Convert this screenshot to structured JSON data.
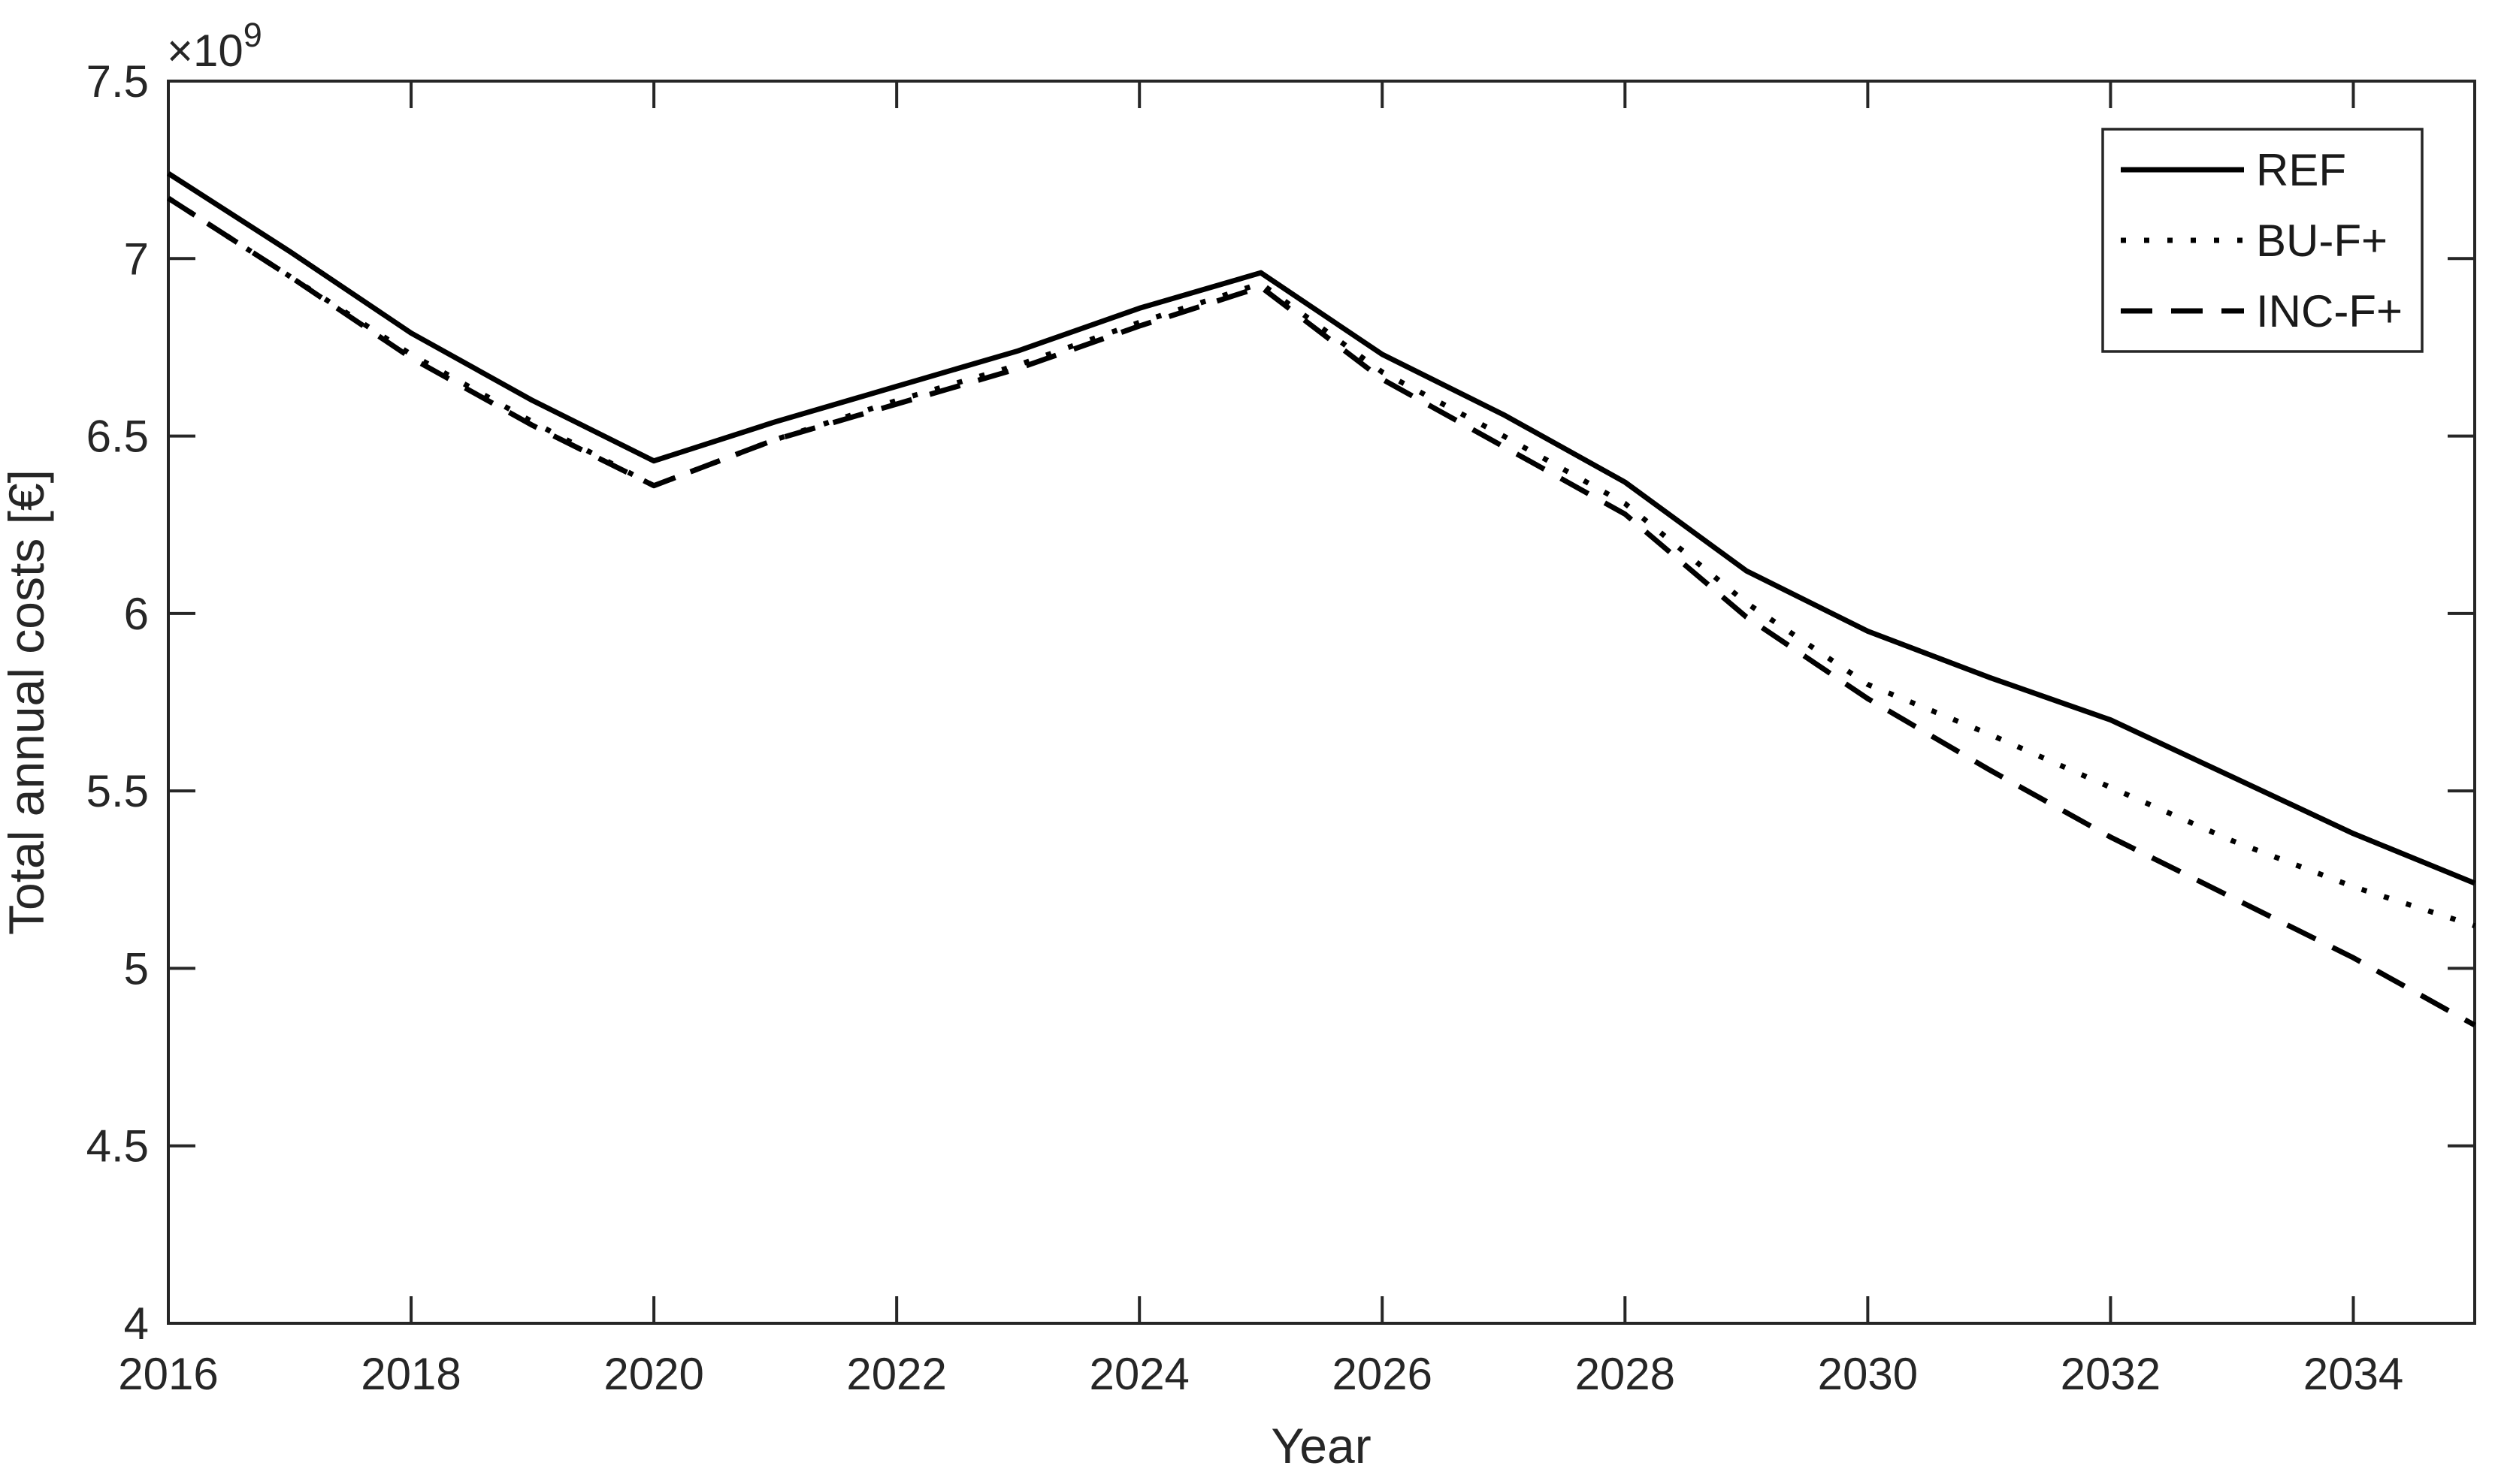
{
  "figure": {
    "background": "#ffffff",
    "axis_color": "#262626",
    "series_color": "#000000"
  },
  "chart_data": {
    "type": "line",
    "title": "",
    "xlabel": "Year",
    "ylabel": "Total annual costs [€]",
    "y_multiplier_base": "×10",
    "y_multiplier_exponent": "9",
    "y_scale_factor": 1000000000,
    "xlim": [
      2016,
      2035
    ],
    "ylim": [
      4,
      7.5
    ],
    "x_ticks": [
      2016,
      2018,
      2020,
      2022,
      2024,
      2026,
      2028,
      2030,
      2032,
      2034
    ],
    "y_ticks": [
      4,
      4.5,
      5,
      5.5,
      6,
      6.5,
      7,
      7.5
    ],
    "y_tick_labels": [
      "4",
      "4.5",
      "5",
      "5.5",
      "6",
      "6.5",
      "7",
      "7.5"
    ],
    "grid": false,
    "x": [
      2016,
      2017,
      2018,
      2019,
      2020,
      2021,
      2022,
      2023,
      2024,
      2025,
      2026,
      2027,
      2028,
      2029,
      2030,
      2031,
      2032,
      2033,
      2034,
      2035
    ],
    "series": [
      {
        "name": "REF",
        "style": "solid",
        "values": [
          7.24,
          7.02,
          6.79,
          6.6,
          6.43,
          6.54,
          6.64,
          6.74,
          6.86,
          6.96,
          6.73,
          6.56,
          6.37,
          6.12,
          5.95,
          5.82,
          5.7,
          5.54,
          5.38,
          5.24
        ]
      },
      {
        "name": "BU-F+",
        "style": "dotted",
        "values": [
          7.17,
          6.95,
          6.73,
          6.54,
          6.36,
          6.49,
          6.6,
          6.7,
          6.82,
          6.93,
          6.68,
          6.5,
          6.31,
          6.03,
          5.8,
          5.66,
          5.51,
          5.36,
          5.23,
          5.12
        ]
      },
      {
        "name": "INC-F+",
        "style": "dashed",
        "values": [
          7.17,
          6.95,
          6.72,
          6.53,
          6.36,
          6.49,
          6.59,
          6.69,
          6.81,
          6.92,
          6.66,
          6.47,
          6.28,
          5.99,
          5.76,
          5.56,
          5.37,
          5.2,
          5.03,
          4.84
        ]
      }
    ],
    "legend": {
      "position": "northeast",
      "entries": [
        "REF",
        "BU-F+",
        "INC-F+"
      ]
    }
  }
}
